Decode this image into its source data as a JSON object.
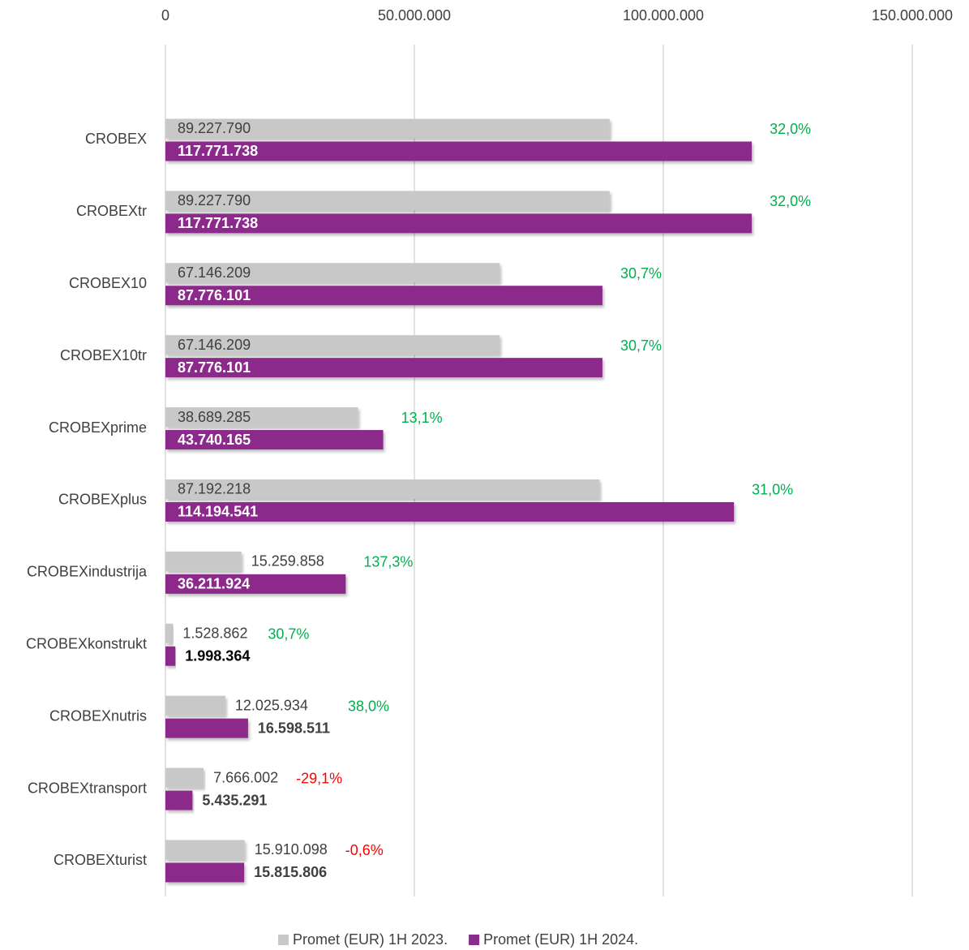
{
  "chart_data": {
    "type": "hbar",
    "categories": [
      "CROBEX",
      "CROBEXtr",
      "CROBEX10",
      "CROBEX10tr",
      "CROBEXprime",
      "CROBEXplus",
      "CROBEXindustrija",
      "CROBEXkonstrukt",
      "CROBEXnutris",
      "CROBEXtransport",
      "CROBEXturist"
    ],
    "series": [
      {
        "name": "Promet (EUR) 1H 2023.",
        "color": "#c8c8c8",
        "values": [
          89227790,
          89227790,
          67146209,
          67146209,
          38689285,
          87192218,
          15259858,
          1528862,
          12025934,
          7666002,
          15910098
        ],
        "value_labels": [
          "89.227.790",
          "89.227.790",
          "67.146.209",
          "67.146.209",
          "38.689.285",
          "87.192.218",
          "15.259.858",
          "1.528.862",
          "12.025.934",
          "7.666.002",
          "15.910.098"
        ]
      },
      {
        "name": "Promet (EUR) 1H 2024.",
        "color": "#8b2b8b",
        "values": [
          117771738,
          117771738,
          87776101,
          87776101,
          43740165,
          114194541,
          36211924,
          1998364,
          16598511,
          5435291,
          15815806
        ],
        "value_labels": [
          "117.771.738",
          "117.771.738",
          "87.776.101",
          "87.776.101",
          "43.740.165",
          "114.194.541",
          "36.211.924",
          "1.998.364",
          "16.598.511",
          "5.435.291",
          "15.815.806"
        ]
      }
    ],
    "change_labels": [
      "32,0%",
      "32,0%",
      "30,7%",
      "30,7%",
      "13,1%",
      "31,0%",
      "137,3%",
      "30,7%",
      "38,0%",
      "-29,1%",
      "-0,6%"
    ],
    "change_colors": {
      "up": "#00b050",
      "down": "#ff0000"
    },
    "xlim": [
      0,
      150000000
    ],
    "xticks": [
      0,
      {
        "value": 50000000,
        "label": "50.000.000"
      },
      {
        "value": 100000000,
        "label": "100.000.000"
      },
      {
        "value": 150000000,
        "label": "150.000.000"
      }
    ],
    "grid": true,
    "legend": "bottom"
  }
}
